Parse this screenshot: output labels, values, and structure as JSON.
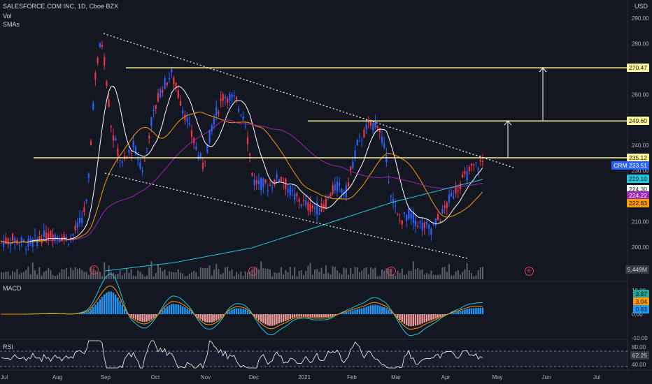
{
  "header": {
    "title": "SALESFORCE.COM INC, 1D, Cboe BZX",
    "vol_label": "Vol",
    "smas_label": "SMAs",
    "currency": "USD"
  },
  "price_axis": {
    "ticks": [
      "290.00",
      "280.00",
      "270.00",
      "260.00",
      "250.00",
      "240.00",
      "230.00",
      "220.00",
      "210.00",
      "200.00"
    ]
  },
  "price_labels": [
    {
      "text": "270.47",
      "bg": "#fff59d",
      "fg": "#131722"
    },
    {
      "text": "249.60",
      "bg": "#fff59d",
      "fg": "#131722"
    },
    {
      "text": "235.12",
      "bg": "#fff59d",
      "fg": "#131722"
    },
    {
      "text": "CRM  233.51",
      "bg": "#2962ff",
      "fg": "#ffffff"
    },
    {
      "text": "229.10",
      "bg": "#26c6da",
      "fg": "#131722"
    },
    {
      "text": "224.30",
      "bg": "#ffffff",
      "fg": "#131722"
    },
    {
      "text": "224.22",
      "bg": "#9c27b0",
      "fg": "#ffffff"
    },
    {
      "text": "222.83",
      "bg": "#ff9800",
      "fg": "#131722"
    },
    {
      "text": "5.449M",
      "bg": "#363a45",
      "fg": "#d1d4dc"
    }
  ],
  "macd": {
    "label": "MACD",
    "ticks": [
      "10.00",
      "0.00",
      "-10.00"
    ],
    "values": [
      {
        "text": "3.87",
        "bg": "#26a69a"
      },
      {
        "text": "3.04",
        "bg": "#ff9800"
      },
      {
        "text": "0.83",
        "bg": "#2196f3"
      }
    ]
  },
  "rsi": {
    "label": "RSI",
    "ticks": [
      "80.00",
      "40.00"
    ],
    "value": {
      "text": "62.25",
      "bg": "#363a45"
    }
  },
  "time_axis": [
    "Jul",
    "Aug",
    "Sep",
    "Oct",
    "Nov",
    "Dec",
    "2021",
    "Feb",
    "Mar",
    "Apr",
    "May",
    "Jun",
    "Jul"
  ],
  "earnings_marker": "E",
  "colors": {
    "bg": "#131722",
    "up": "#2962ff",
    "down": "#f23645",
    "sma_white": "#ffffff",
    "sma_orange": "#ff9800",
    "sma_purple": "#9c27b0",
    "sma_teal": "#26c6da",
    "level": "#fff59d"
  },
  "chart_data": {
    "type": "candlestick",
    "symbol": "CRM",
    "levels": [
      270.47,
      249.6,
      235.12
    ],
    "last_price": 233.51,
    "ylim": [
      195,
      292
    ]
  }
}
